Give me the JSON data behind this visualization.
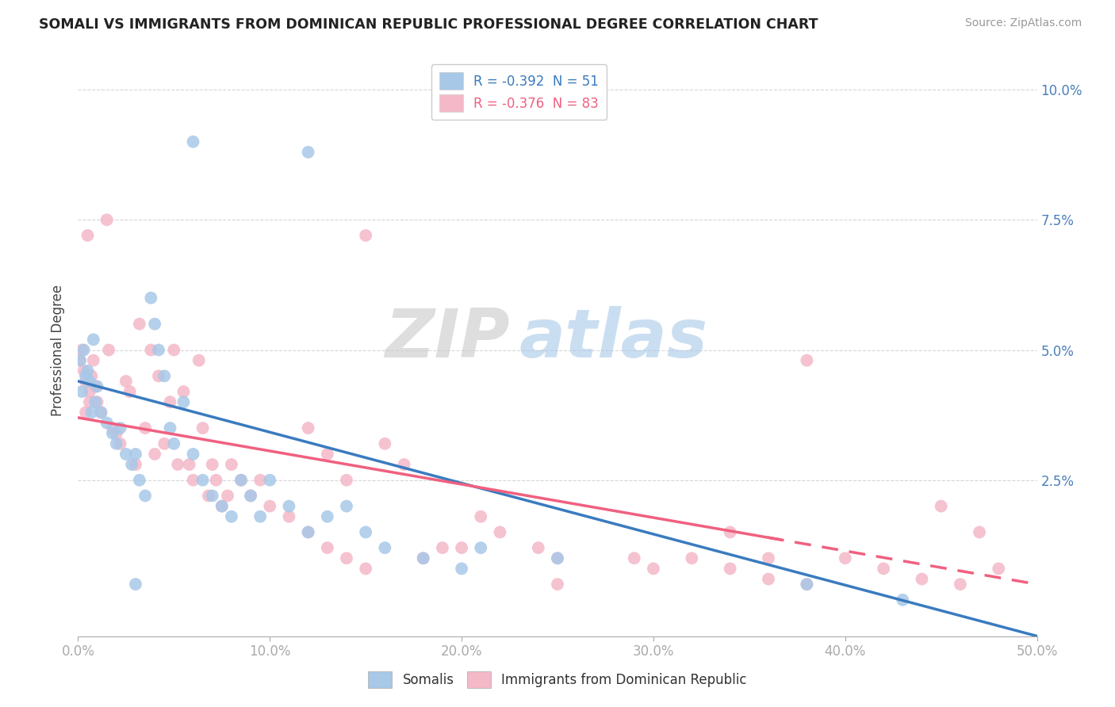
{
  "title": "SOMALI VS IMMIGRANTS FROM DOMINICAN REPUBLIC PROFESSIONAL DEGREE CORRELATION CHART",
  "source": "Source: ZipAtlas.com",
  "ylabel": "Professional Degree",
  "legend_somali": "R = -0.392  N = 51",
  "legend_dr": "R = -0.376  N = 83",
  "somali_color": "#a8c8e8",
  "dr_color": "#f4b8c8",
  "somali_line_color": "#3a7bbf",
  "dr_line_color": "#f06080",
  "watermark_zip": "ZIP",
  "watermark_atlas": "atlas",
  "somali_R": -0.392,
  "dr_R": -0.376,
  "somali_N": 51,
  "dr_N": 83,
  "xlim": [
    0.0,
    0.5
  ],
  "ylim": [
    -0.005,
    0.105
  ],
  "background_color": "#ffffff",
  "grid_color": "#cccccc",
  "somali_line_x0": 0.0,
  "somali_line_y0": 0.044,
  "somali_line_x1": 0.48,
  "somali_line_y1": -0.003,
  "dr_line_x0": 0.0,
  "dr_line_y0": 0.037,
  "dr_line_x1": 0.5,
  "dr_line_y1": 0.005
}
